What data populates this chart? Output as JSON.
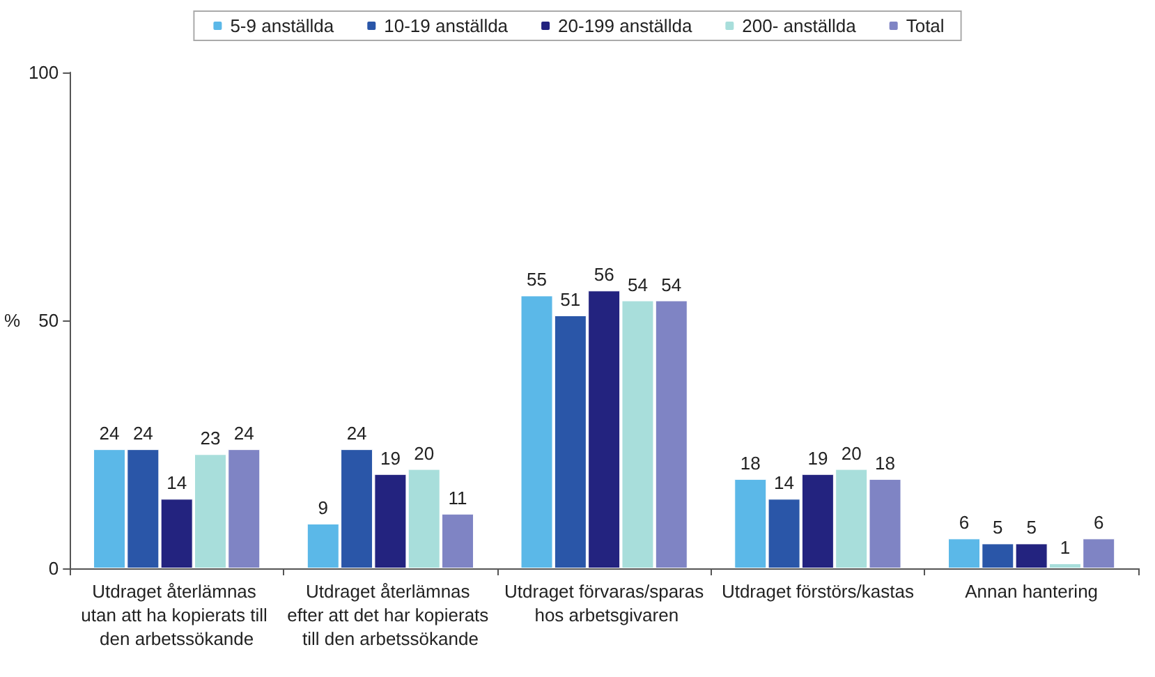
{
  "chart_data": {
    "type": "bar",
    "ylabel": "%",
    "categories": [
      "Utdraget återlämnas utan att ha kopierats till den arbetssökande",
      "Utdraget återlämnas efter att det har kopierats till den arbetssökande",
      "Utdraget förvaras/sparas hos arbetsgivaren",
      "Utdraget förstörs/kastas",
      "Annan hantering"
    ],
    "series": [
      {
        "name": "5-9 anställda",
        "color": "#5bb8e8",
        "values": [
          24,
          9,
          55,
          18,
          6
        ]
      },
      {
        "name": "10-19 anställda",
        "color": "#2a56a8",
        "values": [
          24,
          24,
          51,
          14,
          5
        ]
      },
      {
        "name": "20-199 anställda",
        "color": "#23237f",
        "values": [
          14,
          19,
          56,
          19,
          5
        ]
      },
      {
        "name": "200- anställda",
        "color": "#a8dedb",
        "values": [
          23,
          20,
          54,
          20,
          1
        ]
      },
      {
        "name": "Total",
        "color": "#7f84c4",
        "values": [
          24,
          11,
          54,
          18,
          6
        ]
      }
    ],
    "ylim": [
      0,
      100
    ],
    "yticks": [
      0,
      50,
      100
    ],
    "grid": false,
    "legend": "top",
    "data_labels": true
  }
}
